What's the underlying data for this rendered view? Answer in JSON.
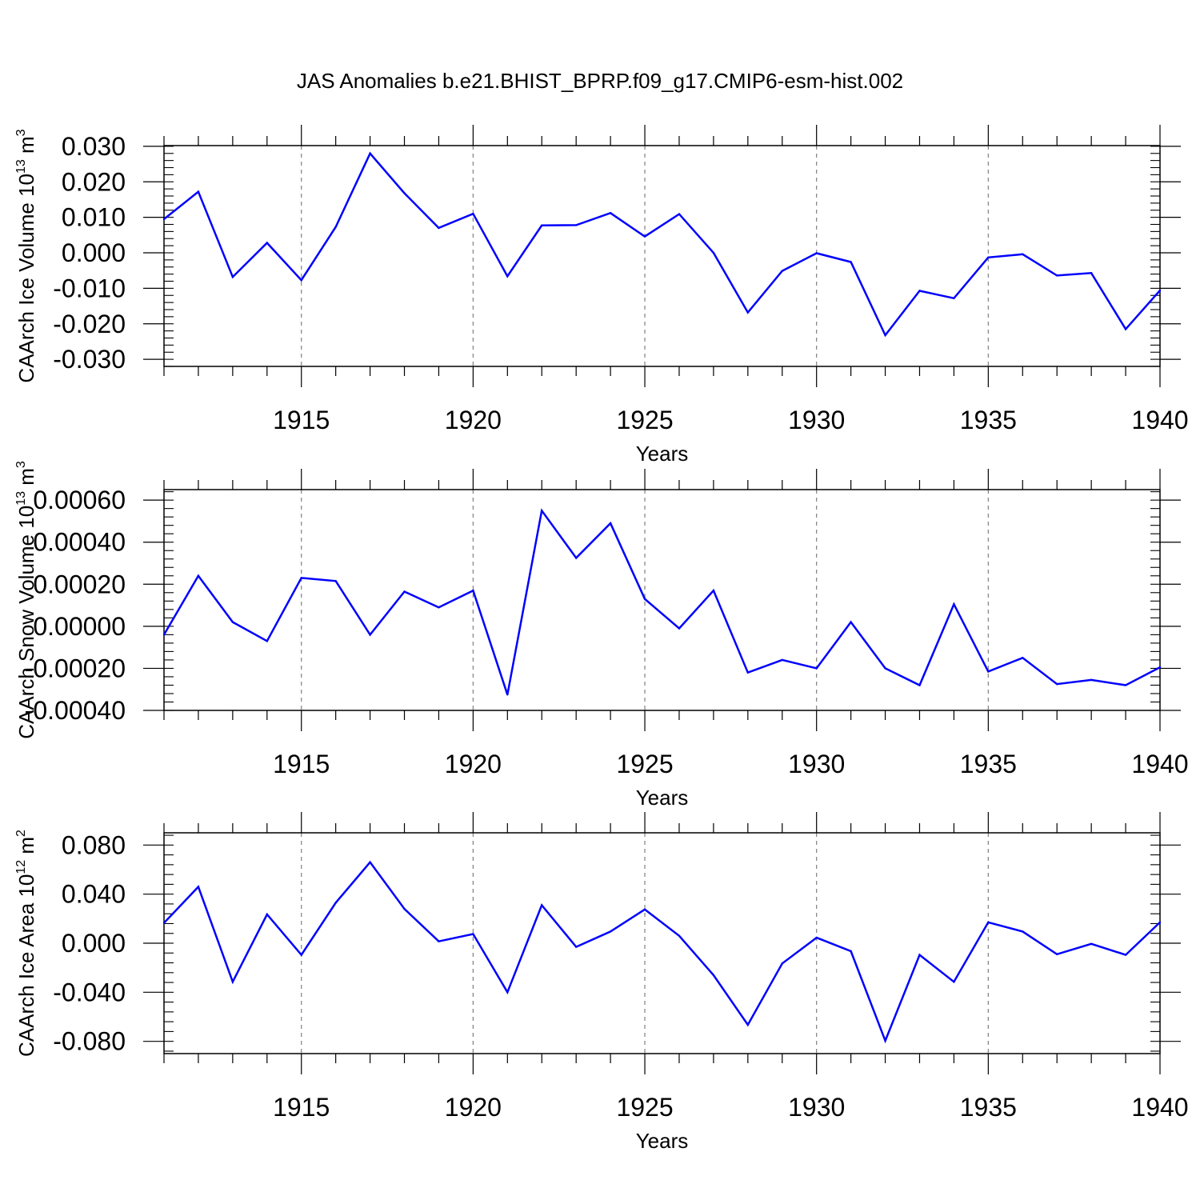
{
  "title": "JAS Anomalies b.e21.BHIST_BPRP.f09_g17.CMIP6-esm-hist.002",
  "colors": {
    "line": "#0000ff",
    "axis": "#000000",
    "grid": "#808080"
  },
  "chart_data": [
    {
      "type": "line",
      "ylabel_text": "CAArch Ice Volume 10",
      "ylabel_exp": "13",
      "ylabel_unit": " m",
      "ylabel_unit_exp": "3",
      "xlabel": "Years",
      "xlim": [
        1911,
        1940
      ],
      "ylim": [
        -0.032,
        0.0302
      ],
      "yticks": [
        0.03,
        0.02,
        0.01,
        0.0,
        -0.01,
        -0.02,
        -0.03
      ],
      "ytick_labels": [
        "0.030",
        "0.020",
        "0.010",
        "0.000",
        "-0.010",
        "-0.020",
        "-0.030"
      ],
      "xticks": [
        1915,
        1920,
        1925,
        1930,
        1935,
        1940
      ],
      "xtick_labels": [
        "1915",
        "1920",
        "1925",
        "1930",
        "1935",
        "1940"
      ],
      "x": [
        1911,
        1912,
        1913,
        1914,
        1915,
        1916,
        1917,
        1918,
        1919,
        1920,
        1921,
        1922,
        1923,
        1924,
        1925,
        1926,
        1927,
        1928,
        1929,
        1930,
        1931,
        1932,
        1933,
        1934,
        1935,
        1936,
        1937,
        1938,
        1939,
        1940
      ],
      "values": [
        0.0095,
        0.0172,
        -0.0068,
        0.0028,
        -0.0077,
        0.0073,
        0.028,
        0.0168,
        0.007,
        0.011,
        -0.0066,
        0.0077,
        0.0078,
        0.0112,
        0.0046,
        0.0109,
        0.0,
        -0.0168,
        -0.0051,
        -0.0001,
        -0.0026,
        -0.0232,
        -0.0107,
        -0.0128,
        -0.0013,
        -0.0004,
        -0.0064,
        -0.0057,
        -0.0215,
        -0.0106
      ]
    },
    {
      "type": "line",
      "ylabel_text": "CAArch Snow Volume 10",
      "ylabel_exp": "13",
      "ylabel_unit": " m",
      "ylabel_unit_exp": "3",
      "xlabel": "Years",
      "xlim": [
        1911,
        1940
      ],
      "ylim": [
        -0.0004,
        0.00065
      ],
      "yticks": [
        0.0006,
        0.0004,
        0.0002,
        0.0,
        -0.0002,
        -0.0004
      ],
      "ytick_labels": [
        "0.00060",
        "0.00040",
        "0.00020",
        "0.00000",
        "-0.00020",
        "-0.00040"
      ],
      "xticks": [
        1915,
        1920,
        1925,
        1930,
        1935,
        1940
      ],
      "xtick_labels": [
        "1915",
        "1920",
        "1925",
        "1930",
        "1935",
        "1940"
      ],
      "x": [
        1911,
        1912,
        1913,
        1914,
        1915,
        1916,
        1917,
        1918,
        1919,
        1920,
        1921,
        1922,
        1923,
        1924,
        1925,
        1926,
        1927,
        1928,
        1929,
        1930,
        1931,
        1932,
        1933,
        1934,
        1935,
        1936,
        1937,
        1938,
        1939,
        1940
      ],
      "values": [
        -4e-05,
        0.00024,
        2e-05,
        -7e-05,
        0.00023,
        0.000215,
        -4e-05,
        0.000165,
        9e-05,
        0.00017,
        -0.000325,
        0.00055,
        0.000325,
        0.00049,
        0.00013,
        -1e-05,
        0.00017,
        -0.00022,
        -0.00016,
        -0.0002,
        2e-05,
        -0.0002,
        -0.00028,
        0.000105,
        -0.000215,
        -0.00015,
        -0.000275,
        -0.000255,
        -0.00028,
        -0.000195
      ]
    },
    {
      "type": "line",
      "ylabel_text": "CAArch Ice Area 10",
      "ylabel_exp": "12",
      "ylabel_unit": " m",
      "ylabel_unit_exp": "2",
      "xlabel": "Years",
      "xlim": [
        1911,
        1940
      ],
      "ylim": [
        -0.09,
        0.09
      ],
      "yticks": [
        0.08,
        0.04,
        0.0,
        -0.04,
        -0.08
      ],
      "ytick_labels": [
        "0.080",
        "0.040",
        "0.000",
        "-0.040",
        "-0.080"
      ],
      "xticks": [
        1915,
        1920,
        1925,
        1930,
        1935,
        1940
      ],
      "xtick_labels": [
        "1915",
        "1920",
        "1925",
        "1930",
        "1935",
        "1940"
      ],
      "x": [
        1911,
        1912,
        1913,
        1914,
        1915,
        1916,
        1917,
        1918,
        1919,
        1920,
        1921,
        1922,
        1923,
        1924,
        1925,
        1926,
        1927,
        1928,
        1929,
        1930,
        1931,
        1932,
        1933,
        1934,
        1935,
        1936,
        1937,
        1938,
        1939,
        1940
      ],
      "values": [
        0.0165,
        0.046,
        -0.0315,
        0.0235,
        -0.0095,
        0.033,
        0.066,
        0.028,
        0.0015,
        0.0075,
        -0.04,
        0.031,
        -0.003,
        0.0095,
        0.0275,
        0.006,
        -0.026,
        -0.0665,
        -0.0165,
        0.0045,
        -0.0065,
        -0.0795,
        -0.0095,
        -0.0315,
        0.017,
        0.0095,
        -0.009,
        -0.0005,
        -0.0095,
        0.017
      ]
    }
  ]
}
